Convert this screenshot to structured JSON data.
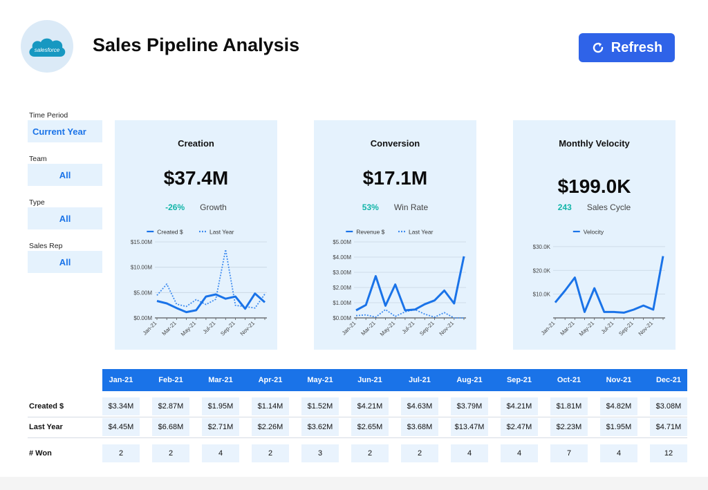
{
  "header": {
    "logo_text": "salesforce",
    "title": "Sales Pipeline Analysis",
    "refresh_label": "Refresh"
  },
  "filters": [
    {
      "label": "Time Period",
      "value": "Current Year"
    },
    {
      "label": "Team",
      "value": "All"
    },
    {
      "label": "Type",
      "value": "All"
    },
    {
      "label": "Sales Rep",
      "value": "All"
    }
  ],
  "colors": {
    "accent": "#1a73e8",
    "button": "#2f63e8",
    "card_bg": "#e5f2fd",
    "kpi_teal": "#12b5a8",
    "series_line": "#1a73e8"
  },
  "cards": [
    {
      "title": "Creation",
      "value": "$37.4M",
      "sub_value": "-26%",
      "sub_label": "Growth",
      "legend": [
        "Created $",
        "Last Year"
      ]
    },
    {
      "title": "Conversion",
      "value": "$17.1M",
      "sub_value": "53%",
      "sub_label": "Win Rate",
      "legend": [
        "Revenue $",
        "Last Year"
      ]
    },
    {
      "title": "Monthly Velocity",
      "value": "$199.0K",
      "sub_value": "243",
      "sub_label": "Sales Cycle",
      "legend": [
        "Velocity"
      ]
    }
  ],
  "chart_data": [
    {
      "type": "line",
      "title": "Creation",
      "x": [
        "Jan-21",
        "Feb-21",
        "Mar-21",
        "Apr-21",
        "May-21",
        "Jun-21",
        "Jul-21",
        "Aug-21",
        "Sep-21",
        "Oct-21",
        "Nov-21",
        "Dec-21"
      ],
      "tick_labels": [
        "Jan-21",
        "Mar-21",
        "May-21",
        "Jul-21",
        "Sep-21",
        "Nov-21"
      ],
      "y_ticks": [
        "$0.00M",
        "$5.00M",
        "$10.00M",
        "$15.00M"
      ],
      "ylim": [
        0,
        15
      ],
      "grid": true,
      "legend_position": "top",
      "series": [
        {
          "name": "Created $",
          "style": "solid",
          "values": [
            3.34,
            2.87,
            1.95,
            1.14,
            1.52,
            4.21,
            4.63,
            3.79,
            4.21,
            1.81,
            4.82,
            3.08
          ]
        },
        {
          "name": "Last Year",
          "style": "dotted",
          "values": [
            4.45,
            6.68,
            2.71,
            2.26,
            3.62,
            2.65,
            3.68,
            13.47,
            2.47,
            2.23,
            1.95,
            4.71
          ]
        }
      ]
    },
    {
      "type": "line",
      "title": "Conversion",
      "x": [
        "Jan-21",
        "Feb-21",
        "Mar-21",
        "Apr-21",
        "May-21",
        "Jun-21",
        "Jul-21",
        "Aug-21",
        "Sep-21",
        "Oct-21",
        "Nov-21",
        "Dec-21"
      ],
      "tick_labels": [
        "Jan-21",
        "Mar-21",
        "May-21",
        "Jul-21",
        "Sep-21",
        "Nov-21"
      ],
      "y_ticks": [
        "$0.00M",
        "$1.00M",
        "$2.00M",
        "$3.00M",
        "$4.00M",
        "$5.00M"
      ],
      "ylim": [
        0,
        5
      ],
      "grid": true,
      "legend_position": "top",
      "series": [
        {
          "name": "Revenue $",
          "style": "solid",
          "values": [
            0.5,
            0.85,
            2.75,
            0.8,
            2.2,
            0.5,
            0.55,
            0.9,
            1.15,
            1.8,
            0.95,
            4.05
          ]
        },
        {
          "name": "Last Year",
          "style": "dotted",
          "values": [
            0.15,
            0.2,
            0.05,
            0.55,
            0.1,
            0.4,
            0.55,
            0.25,
            0.05,
            0.35,
            0.0,
            0.0
          ]
        }
      ]
    },
    {
      "type": "line",
      "title": "Monthly Velocity",
      "x": [
        "Jan-21",
        "Feb-21",
        "Mar-21",
        "Apr-21",
        "May-21",
        "Jun-21",
        "Jul-21",
        "Aug-21",
        "Sep-21",
        "Oct-21",
        "Nov-21",
        "Dec-21"
      ],
      "tick_labels": [
        "Jan-21",
        "Mar-21",
        "May-21",
        "Jul-21",
        "Sep-21",
        "Nov-21"
      ],
      "y_ticks": [
        "$10.0K",
        "$20.0K",
        "$30.0K"
      ],
      "ylim": [
        0,
        32
      ],
      "grid": true,
      "legend_position": "top",
      "series": [
        {
          "name": "Velocity",
          "style": "solid",
          "values": [
            6.5,
            11.5,
            17,
            2.5,
            12.5,
            2.5,
            2.5,
            2.2,
            3.5,
            5.2,
            3.5,
            26
          ]
        }
      ]
    }
  ],
  "table": {
    "months": [
      "Jan-21",
      "Feb-21",
      "Mar-21",
      "Apr-21",
      "May-21",
      "Jun-21",
      "Jul-21",
      "Aug-21",
      "Sep-21",
      "Oct-21",
      "Nov-21",
      "Dec-21"
    ],
    "rows": [
      {
        "label": "Created $",
        "values": [
          "$3.34M",
          "$2.87M",
          "$1.95M",
          "$1.14M",
          "$1.52M",
          "$4.21M",
          "$4.63M",
          "$3.79M",
          "$4.21M",
          "$1.81M",
          "$4.82M",
          "$3.08M"
        ]
      },
      {
        "label": "Last Year",
        "values": [
          "$4.45M",
          "$6.68M",
          "$2.71M",
          "$2.26M",
          "$3.62M",
          "$2.65M",
          "$3.68M",
          "$13.47M",
          "$2.47M",
          "$2.23M",
          "$1.95M",
          "$4.71M"
        ]
      },
      {
        "label": "# Won",
        "values": [
          "2",
          "2",
          "4",
          "2",
          "3",
          "2",
          "2",
          "4",
          "4",
          "7",
          "4",
          "12"
        ]
      }
    ]
  }
}
